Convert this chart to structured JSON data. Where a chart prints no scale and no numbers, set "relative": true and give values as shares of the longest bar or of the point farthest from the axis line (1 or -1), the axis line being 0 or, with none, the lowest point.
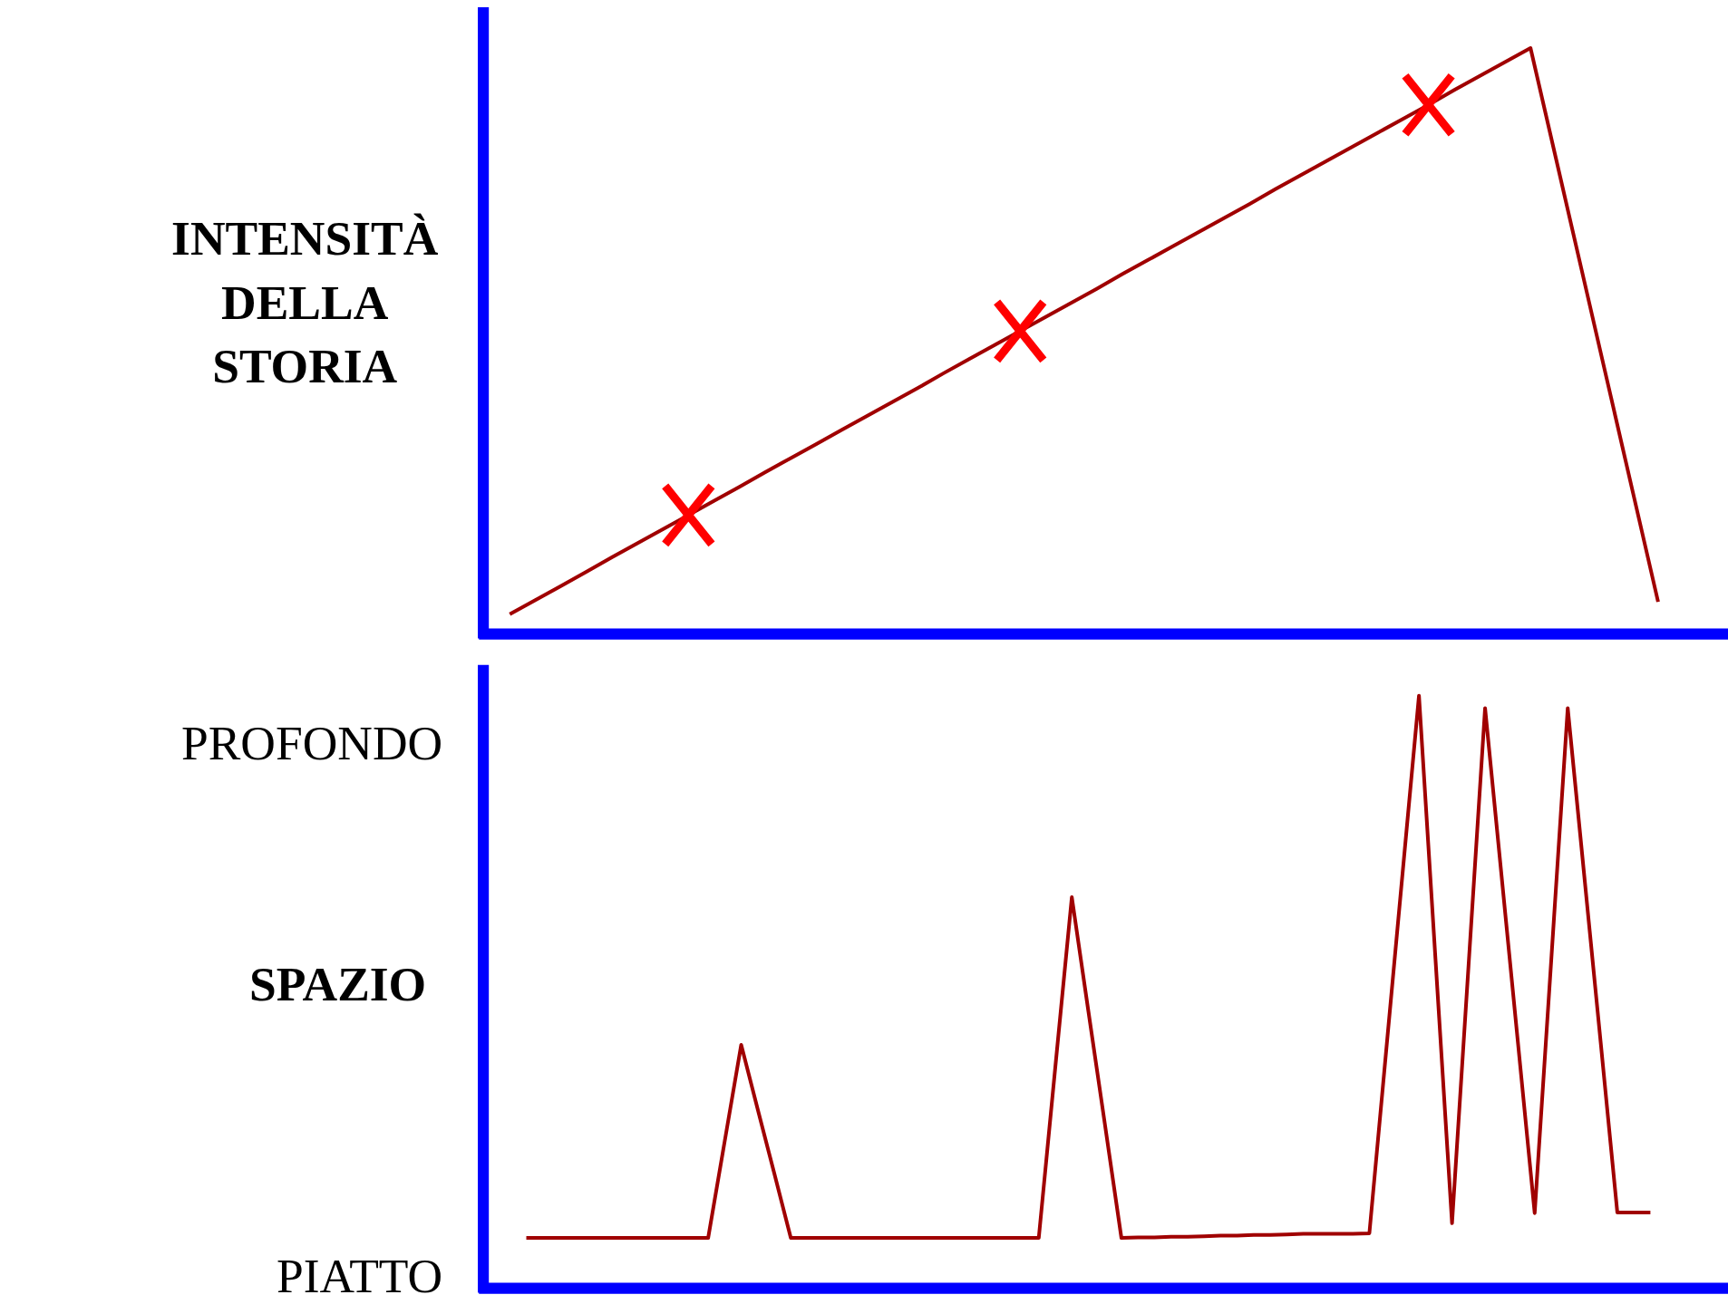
{
  "chart_data": [
    {
      "type": "line",
      "ylabel": "INTENSITÀ DELLA STORIA",
      "relative": true,
      "line_style": "solid",
      "categories": [
        null,
        null,
        null,
        null,
        null,
        null,
        null,
        null,
        null,
        null,
        null,
        null,
        null,
        null,
        null,
        null,
        null,
        null,
        null,
        null,
        null,
        null,
        null,
        null,
        null,
        null,
        null,
        null,
        null,
        null,
        null,
        null,
        null,
        null,
        null,
        null,
        null,
        null,
        null,
        null,
        null,
        null,
        null,
        null,
        null,
        null
      ],
      "series": [
        {
          "color": "#a00000",
          "values": [
            0.034,
            0.058,
            0.082,
            0.106,
            0.131,
            0.155,
            0.179,
            0.203,
            0.227,
            0.251,
            0.276,
            0.3,
            0.324,
            0.348,
            0.372,
            0.396,
            0.42,
            0.445,
            0.469,
            0.493,
            0.517,
            0.541,
            0.565,
            0.589,
            0.614,
            0.638,
            0.662,
            0.686,
            0.71,
            0.734,
            0.759,
            0.783,
            0.807,
            0.831,
            0.855,
            0.879,
            0.903,
            0.928,
            0.952,
            0.976,
            1,
            0.811,
            0.622,
            0.433,
            0.244,
            0.055
          ]
        }
      ]
    },
    {
      "type": "line",
      "ylabel": "SPAZIO",
      "relative": true,
      "line_style": "solid",
      "annotations": [
        "PROFONDO",
        "PIATTO"
      ],
      "categories": [
        null,
        null,
        null,
        null,
        null,
        null,
        null,
        null,
        null,
        null,
        null,
        null,
        null,
        null,
        null,
        null,
        null,
        null,
        null,
        null,
        null,
        null,
        null,
        null,
        null,
        null,
        null,
        null,
        null,
        null,
        null,
        null,
        null,
        null,
        null,
        null,
        null,
        null,
        null,
        null,
        null,
        null,
        null,
        null,
        null,
        null,
        null,
        null,
        null,
        null,
        null,
        null,
        null,
        null,
        null,
        null,
        null,
        null,
        null,
        null,
        null,
        null,
        null,
        null,
        null,
        null,
        null,
        null,
        null
      ],
      "series": [
        {
          "color": "#a00000",
          "values": [
            0.085,
            0.085,
            0.085,
            0.085,
            0.085,
            0.085,
            0.085,
            0.085,
            0.085,
            0.085,
            0.085,
            0.085,
            0.248,
            0.411,
            0.302,
            0.194,
            0.085,
            0.085,
            0.085,
            0.085,
            0.085,
            0.085,
            0.085,
            0.085,
            0.085,
            0.085,
            0.085,
            0.085,
            0.085,
            0.085,
            0.085,
            0.085,
            0.373,
            0.66,
            0.468,
            0.277,
            0.085,
            0.086,
            0.086,
            0.087,
            0.087,
            0.088,
            0.089,
            0.089,
            0.09,
            0.09,
            0.091,
            0.092,
            0.092,
            0.092,
            0.092,
            0.093,
            0.396,
            0.698,
            1,
            0.555,
            0.11,
            0.545,
            0.979,
            0.695,
            0.411,
            0.127,
            0.553,
            0.979,
            0.696,
            0.413,
            0.128,
            0.128,
            0.128
          ]
        }
      ]
    }
  ]
}
